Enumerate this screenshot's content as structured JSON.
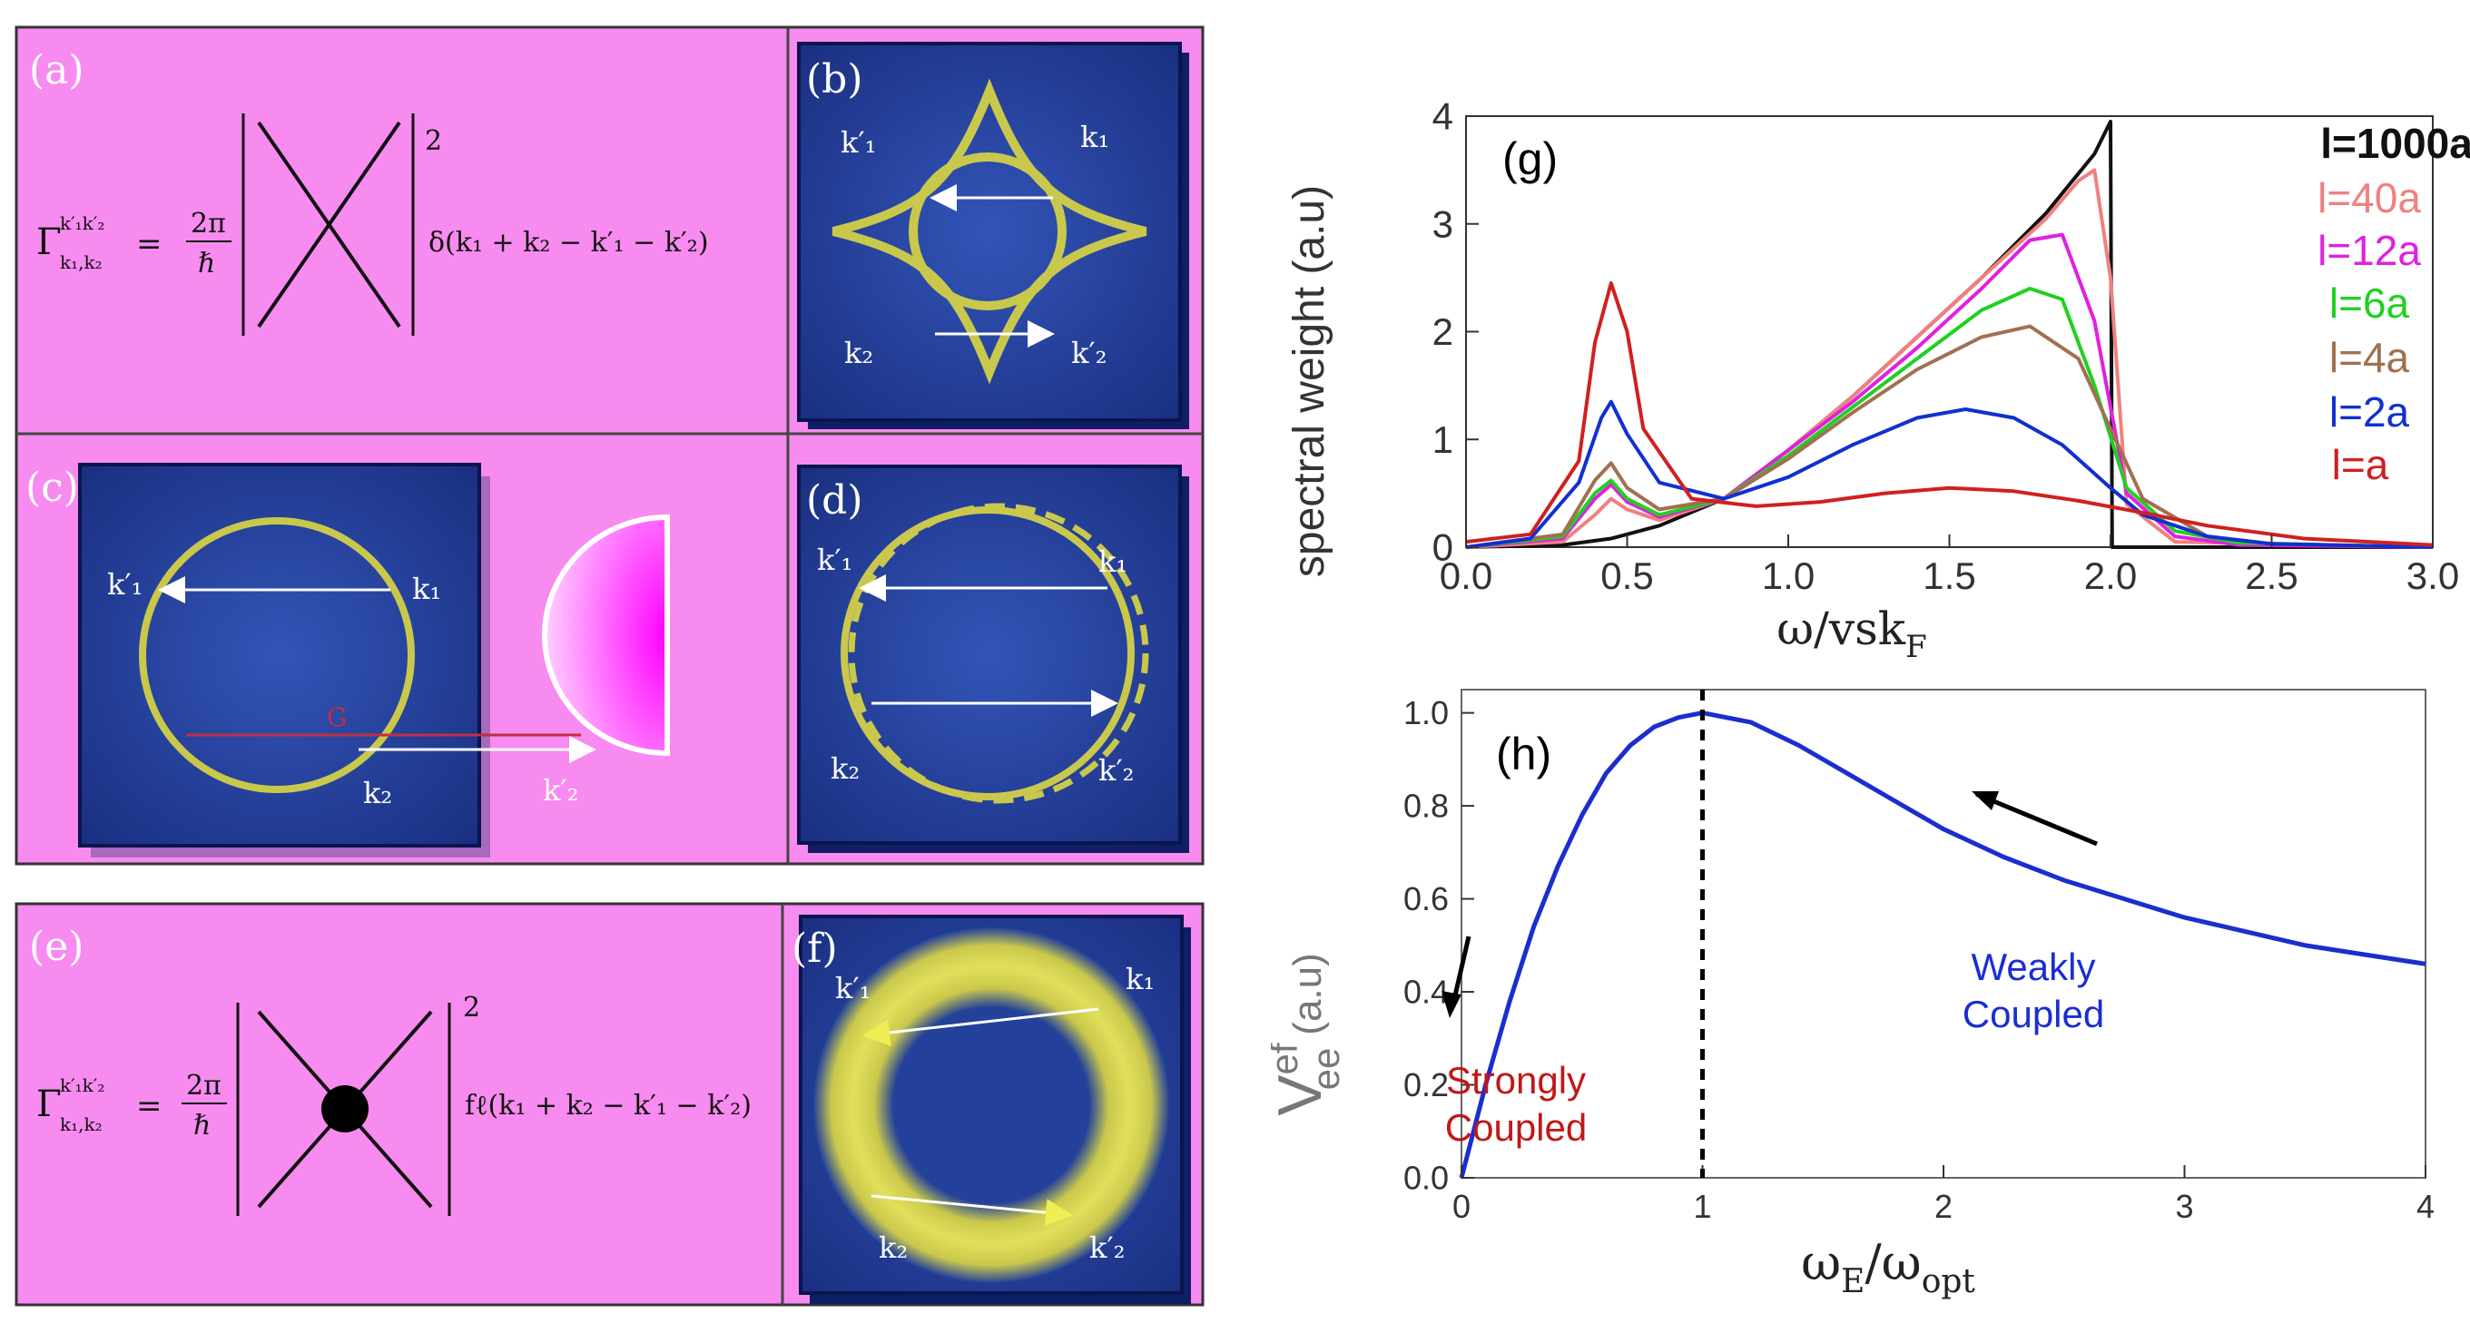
{
  "panels": {
    "a": {
      "label": "(a)",
      "gamma_sup": "k′₁k′₂",
      "gamma_sub": "k₁,k₂",
      "lhs": "Γ",
      "eq": "=",
      "two_pi": "2π",
      "hbar": "ℏ",
      "power": "2",
      "rhs": "δ(k₁ + k₂ − k′₁ − k′₂)"
    },
    "b": {
      "label": "(b)",
      "k1p": "k′₁",
      "k1": "k₁",
      "k2": "k₂",
      "k2p": "k′₂"
    },
    "c": {
      "label": "(c)",
      "k1p": "k′₁",
      "k1": "k₁",
      "k2": "k₂",
      "k2p": "k′₂",
      "G": "G"
    },
    "d": {
      "label": "(d)",
      "k1p": "k′₁",
      "k1": "k₁",
      "k2": "k₂",
      "k2p": "k′₂"
    },
    "e": {
      "label": "(e)",
      "gamma_sup": "k′₁k′₂",
      "gamma_sub": "k₁,k₂",
      "lhs": "Γ",
      "eq": "=",
      "two_pi": "2π",
      "hbar": "ℏ",
      "power": "2",
      "rhs": "fℓ(k₁ + k₂ − k′₁ − k′₂)"
    },
    "f": {
      "label": "(f)",
      "k1p": "k′₁",
      "k1": "k₁",
      "k2": "k₂",
      "k2p": "k′₂"
    }
  },
  "colors": {
    "panel_bg": "#f78bef",
    "box_blue": "#23419a",
    "ring": "#c9c84c",
    "arrow": "#ffffff"
  },
  "chart_data": [
    {
      "type": "line",
      "label": "(g)",
      "xlabel": "ω/vsk",
      "xlabel_sub": "F",
      "ylabel": "spectral weight (a.u)",
      "xlim": [
        0,
        3
      ],
      "ylim": [
        0,
        4
      ],
      "xticks": [
        "0.0",
        "0.5",
        "1.0",
        "1.5",
        "2.0",
        "2.5",
        "3.0"
      ],
      "yticks": [
        "0",
        "1",
        "2",
        "3",
        "4"
      ],
      "grid": false,
      "legend_position": "top-right",
      "series": [
        {
          "name": "l=1000a",
          "color": "#111111",
          "x": [
            0,
            0.3,
            0.45,
            0.6,
            0.8,
            1.0,
            1.2,
            1.4,
            1.6,
            1.8,
            1.95,
            2.0,
            2.005,
            2.1,
            3.0
          ],
          "y": [
            0,
            0.02,
            0.08,
            0.2,
            0.45,
            0.9,
            1.4,
            1.95,
            2.5,
            3.1,
            3.65,
            3.95,
            0,
            0,
            0
          ]
        },
        {
          "name": "l=40a",
          "color": "#f08080",
          "x": [
            0,
            0.3,
            0.4,
            0.45,
            0.5,
            0.6,
            0.8,
            1.0,
            1.2,
            1.4,
            1.6,
            1.8,
            1.9,
            1.95,
            2.0,
            2.05,
            2.2,
            3.0
          ],
          "y": [
            0,
            0.05,
            0.3,
            0.45,
            0.35,
            0.25,
            0.45,
            0.9,
            1.4,
            1.95,
            2.5,
            3.05,
            3.4,
            3.5,
            2.5,
            0.4,
            0.05,
            0
          ]
        },
        {
          "name": "l=12a",
          "color": "#e020e0",
          "x": [
            0,
            0.3,
            0.4,
            0.45,
            0.5,
            0.6,
            0.8,
            1.0,
            1.2,
            1.4,
            1.6,
            1.75,
            1.85,
            1.95,
            2.05,
            2.2,
            2.4,
            3.0
          ],
          "y": [
            0,
            0.08,
            0.45,
            0.58,
            0.42,
            0.28,
            0.45,
            0.9,
            1.35,
            1.85,
            2.4,
            2.85,
            2.9,
            2.1,
            0.5,
            0.1,
            0.02,
            0
          ]
        },
        {
          "name": "l=6a",
          "color": "#20d020",
          "x": [
            0,
            0.3,
            0.4,
            0.45,
            0.5,
            0.6,
            0.8,
            1.0,
            1.2,
            1.4,
            1.6,
            1.75,
            1.85,
            1.95,
            2.05,
            2.2,
            2.4,
            3.0
          ],
          "y": [
            0,
            0.1,
            0.5,
            0.62,
            0.45,
            0.3,
            0.45,
            0.85,
            1.3,
            1.75,
            2.2,
            2.4,
            2.3,
            1.5,
            0.55,
            0.15,
            0.04,
            0
          ]
        },
        {
          "name": "l=4a",
          "color": "#a07050",
          "x": [
            0,
            0.3,
            0.4,
            0.45,
            0.5,
            0.6,
            0.8,
            1.0,
            1.2,
            1.4,
            1.6,
            1.75,
            1.9,
            2.0,
            2.1,
            2.3,
            2.5,
            3.0
          ],
          "y": [
            0,
            0.12,
            0.62,
            0.78,
            0.55,
            0.35,
            0.45,
            0.82,
            1.25,
            1.65,
            1.95,
            2.05,
            1.75,
            1.1,
            0.45,
            0.1,
            0.03,
            0
          ]
        },
        {
          "name": "l=2a",
          "color": "#1030d0",
          "x": [
            0,
            0.2,
            0.35,
            0.42,
            0.45,
            0.5,
            0.6,
            0.8,
            1.0,
            1.2,
            1.4,
            1.55,
            1.7,
            1.85,
            2.0,
            2.1,
            2.3,
            2.5,
            3.0
          ],
          "y": [
            0,
            0.08,
            0.6,
            1.2,
            1.35,
            1.05,
            0.6,
            0.45,
            0.65,
            0.95,
            1.2,
            1.28,
            1.2,
            0.95,
            0.55,
            0.3,
            0.1,
            0.03,
            0
          ]
        },
        {
          "name": "l=a",
          "color": "#d02020",
          "x": [
            0,
            0.2,
            0.35,
            0.4,
            0.45,
            0.5,
            0.55,
            0.7,
            0.9,
            1.1,
            1.3,
            1.5,
            1.7,
            1.9,
            2.1,
            2.3,
            2.6,
            3.0
          ],
          "y": [
            0.05,
            0.12,
            0.8,
            1.9,
            2.45,
            2.0,
            1.1,
            0.45,
            0.38,
            0.42,
            0.5,
            0.55,
            0.52,
            0.43,
            0.32,
            0.2,
            0.08,
            0.02
          ]
        }
      ]
    },
    {
      "type": "line",
      "label": "(h)",
      "xlabel": "ω",
      "xlabel_mid": "E",
      "xlabel_sep": "/ω",
      "xlabel_sub": "opt",
      "ylabel": "V",
      "ylabel_sup": "ef",
      "ylabel_sub": "ee",
      "ylabel_unit": "(a.u)",
      "xlim": [
        0,
        4
      ],
      "ylim": [
        0,
        1.05
      ],
      "xticks": [
        "0",
        "1",
        "2",
        "3",
        "4"
      ],
      "yticks": [
        "0.0",
        "0.2",
        "0.4",
        "0.6",
        "0.8",
        "1.0"
      ],
      "grid": false,
      "vline_x": 1,
      "series": [
        {
          "color": "#1a2ed0",
          "x": [
            0,
            0.05,
            0.1,
            0.2,
            0.3,
            0.4,
            0.5,
            0.6,
            0.7,
            0.8,
            0.9,
            1.0,
            1.2,
            1.4,
            1.6,
            1.8,
            2.0,
            2.25,
            2.5,
            2.75,
            3.0,
            3.25,
            3.5,
            3.75,
            4.0
          ],
          "y": [
            0,
            0.1,
            0.2,
            0.38,
            0.54,
            0.67,
            0.78,
            0.87,
            0.93,
            0.97,
            0.99,
            1.0,
            0.98,
            0.93,
            0.87,
            0.81,
            0.75,
            0.69,
            0.64,
            0.6,
            0.56,
            0.53,
            0.5,
            0.48,
            0.46
          ]
        }
      ],
      "annotations": [
        {
          "text1": "Weakly",
          "text2": "Coupled",
          "color": "#1a2ed0"
        },
        {
          "text1": "Strongly",
          "text2": "Coupled",
          "color": "#c01818"
        }
      ]
    }
  ]
}
